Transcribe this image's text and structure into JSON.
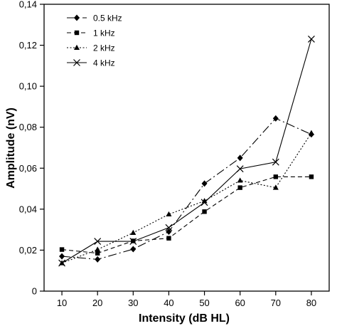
{
  "chart_data": {
    "type": "line",
    "xlabel": "Intensity (dB HL)",
    "ylabel": "Amplitude (nV)",
    "x": [
      10,
      20,
      30,
      40,
      50,
      60,
      70,
      80
    ],
    "xlim": [
      5,
      85
    ],
    "ylim": [
      0,
      0.14
    ],
    "x_ticks": [
      "10",
      "20",
      "30",
      "40",
      "50",
      "60",
      "70",
      "80"
    ],
    "y_ticks": [
      "0",
      "0,02",
      "0,04",
      "0,06",
      "0,08",
      "0,10",
      "0,12",
      "0,14"
    ],
    "y_tick_values": [
      0,
      0.02,
      0.04,
      0.06,
      0.08,
      0.1,
      0.12,
      0.14
    ],
    "grid": false,
    "legend_position": "top-left",
    "series": [
      {
        "name": "0.5 kHz",
        "marker": "diamond",
        "dash": "long-dash",
        "values": [
          0.017,
          0.0155,
          0.0205,
          0.029,
          0.0525,
          0.065,
          0.0843,
          0.0765
        ]
      },
      {
        "name": "1 kHz",
        "marker": "square",
        "dash": "dash",
        "values": [
          0.0203,
          0.0185,
          0.0245,
          0.0258,
          0.0388,
          0.0505,
          0.0558,
          0.0558
        ]
      },
      {
        "name": "2 kHz",
        "marker": "triangle",
        "dash": "dot",
        "values": [
          0.0137,
          0.0203,
          0.0285,
          0.0375,
          0.044,
          0.054,
          0.0505,
          0.0772
        ]
      },
      {
        "name": "4 kHz",
        "marker": "x",
        "dash": "solid",
        "values": [
          0.0137,
          0.0243,
          0.0243,
          0.031,
          0.0433,
          0.0597,
          0.063,
          0.123
        ]
      }
    ]
  }
}
